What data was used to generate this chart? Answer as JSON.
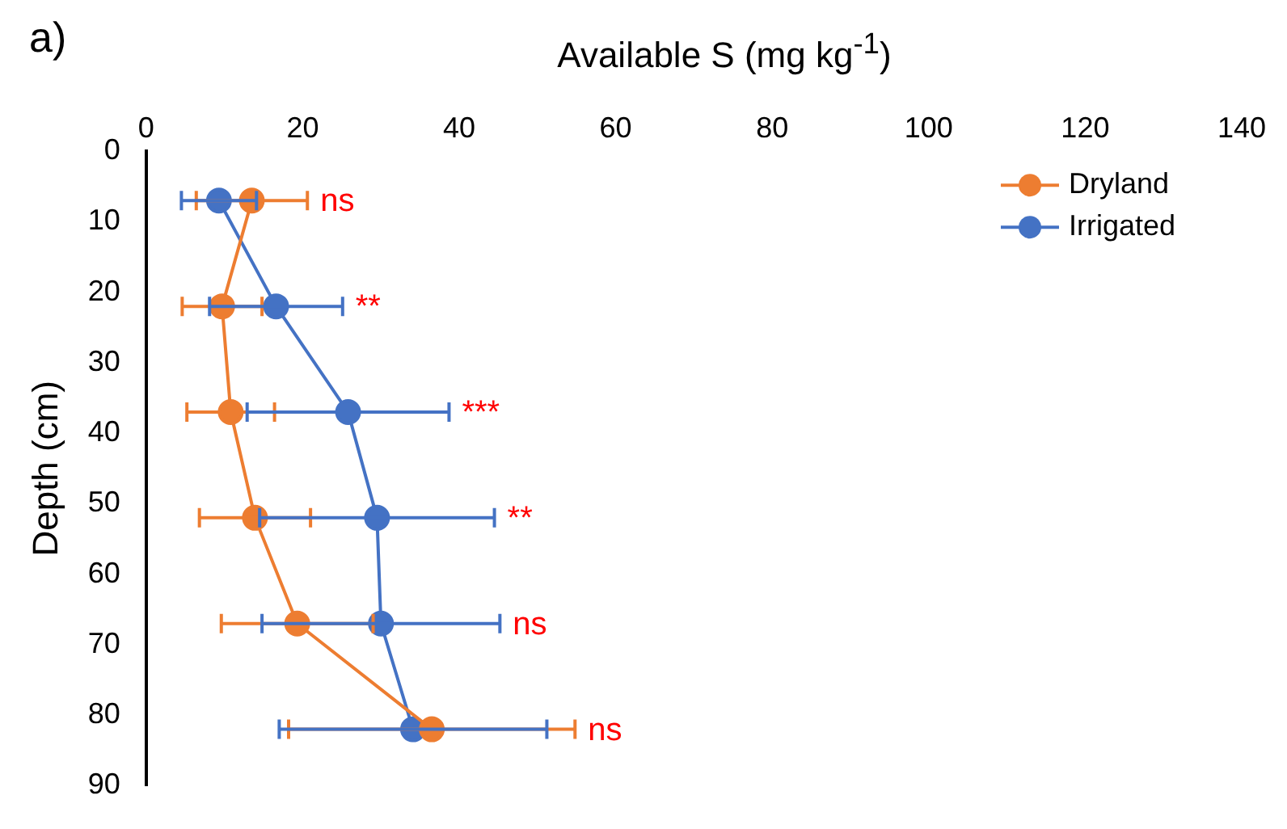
{
  "chart_data": {
    "type": "line",
    "title": "a)",
    "xlabel": "Available S (mg kg$^{-1}$)",
    "ylabel": "Depth (cm)",
    "xlim": [
      0,
      140
    ],
    "xticks": [
      0,
      20,
      40,
      60,
      80,
      100,
      120,
      140
    ],
    "ylim": [
      90,
      0
    ],
    "yticks": [
      0,
      10,
      20,
      30,
      40,
      50,
      60,
      70,
      80,
      90
    ],
    "grid": false,
    "legend": "top right",
    "marker": "circle",
    "line_style": "solid",
    "series": [
      {
        "name": "Dryland",
        "color": "#ed7d31",
        "x": [
          13.5,
          9.7,
          10.8,
          13.9,
          19.3,
          36.5
        ],
        "values": [
          7,
          22,
          37,
          52,
          67,
          82
        ],
        "xerrors": [
          7.1,
          5.1,
          5.6,
          7.1,
          9.7,
          18.3
        ]
      },
      {
        "name": "Irrigated",
        "color": "#4472c4",
        "x": [
          9.3,
          16.6,
          25.8,
          29.5,
          30.0,
          34.1
        ],
        "values": [
          7,
          22,
          37,
          52,
          67,
          82
        ],
        "xerrors": [
          4.8,
          8.5,
          12.9,
          15,
          15.2,
          17.1
        ]
      }
    ],
    "annotations": [
      {
        "text": "ns",
        "x": 20.6,
        "y": 7
      },
      {
        "text": "**",
        "x": 25.1,
        "y": 22
      },
      {
        "text": "***",
        "x": 38.7,
        "y": 37
      },
      {
        "text": "**",
        "x": 44.5,
        "y": 52
      },
      {
        "text": "ns",
        "x": 45.2,
        "y": 67
      },
      {
        "text": "ns",
        "x": 54.8,
        "y": 82
      }
    ]
  }
}
